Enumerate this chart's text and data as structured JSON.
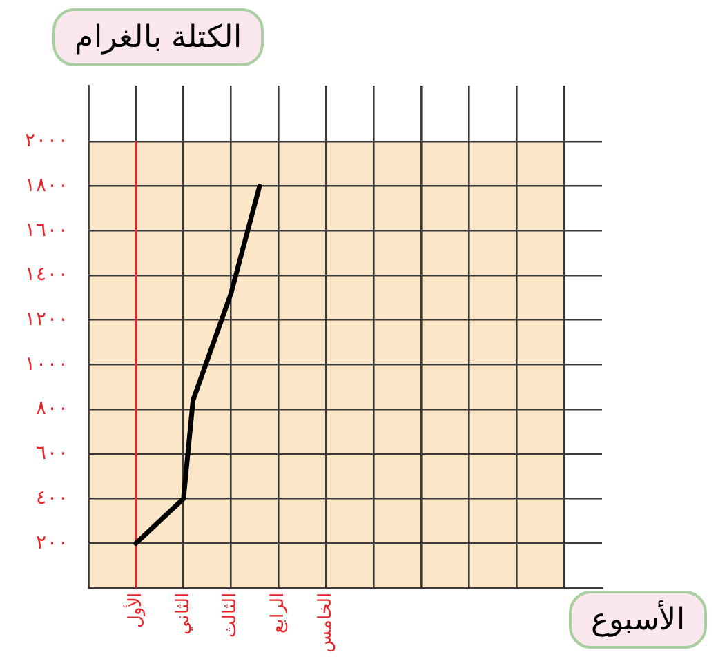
{
  "chart_data": {
    "type": "line",
    "xlabel": "الأسبوع",
    "ylabel": "الكتلة بالغرام",
    "categories": [
      null,
      null,
      null,
      null,
      null,
      "الأول",
      null,
      null,
      null,
      null,
      "الثاني",
      null,
      null,
      null,
      null,
      "الثالث",
      null,
      null,
      null,
      null,
      "الرابع",
      null,
      null,
      null,
      null,
      "الخامس",
      null,
      null,
      null,
      null,
      null,
      null,
      null,
      null,
      null,
      null,
      null,
      null,
      null,
      null,
      null,
      null,
      null,
      null,
      null,
      null,
      null,
      null,
      null,
      null,
      null,
      null,
      null,
      null,
      null
    ],
    "series": [
      {
        "color": "#000000",
        "values": [
          null,
          null,
          null,
          null,
          null,
          200,
          null,
          null,
          null,
          null,
          400,
          840,
          null,
          null,
          null,
          1320,
          null,
          null,
          1800,
          null,
          null,
          null,
          null,
          null,
          null,
          null,
          null,
          null,
          null,
          null,
          null,
          null,
          null,
          null,
          null,
          null,
          null,
          null,
          null,
          null,
          null,
          null,
          null,
          null,
          null,
          null,
          null,
          null,
          null,
          null,
          null,
          null,
          null,
          null,
          null
        ]
      }
    ],
    "ylim": [
      0,
      2250
    ],
    "yticks": [
      {
        "value": 0,
        "label": null
      },
      {
        "value": 200,
        "label": "٢٠٠"
      },
      {
        "value": 400,
        "label": "٤٠٠"
      },
      {
        "value": 600,
        "label": "٦٠٠"
      },
      {
        "value": 800,
        "label": "٨٠٠"
      },
      {
        "value": 1000,
        "label": "١٠٠٠"
      },
      {
        "value": 1200,
        "label": "١٢٠٠"
      },
      {
        "value": 1400,
        "label": "١٤٠٠"
      },
      {
        "value": 1600,
        "label": "١٦٠٠"
      },
      {
        "value": 1800,
        "label": "١٨٠٠"
      },
      {
        "value": 2000,
        "label": "٢٠٠٠"
      }
    ],
    "ref_lines": [
      {
        "axis": "x",
        "value": "الأول",
        "color": "#e8262a"
      }
    ],
    "grid": true,
    "legend": false,
    "marker": "none",
    "line_style": "solid"
  }
}
